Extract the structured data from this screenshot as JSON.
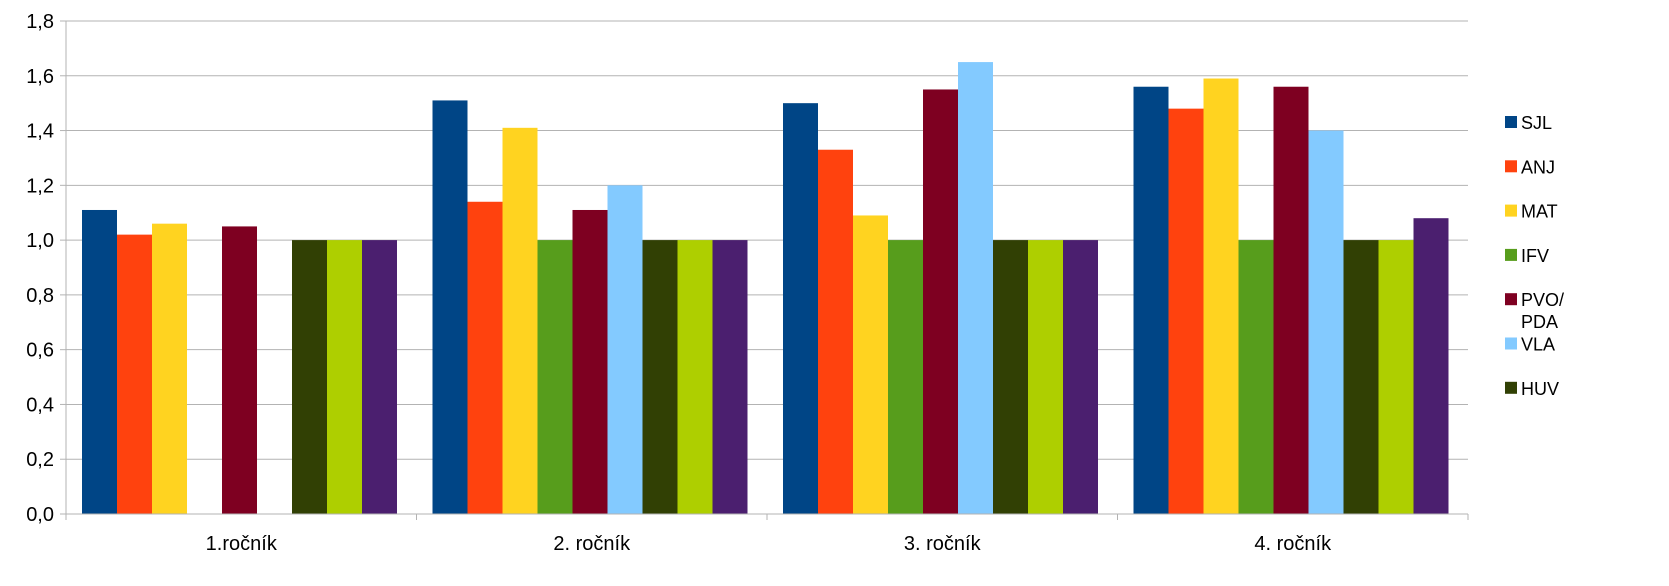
{
  "chart_data": {
    "type": "bar",
    "title": "",
    "xlabel": "",
    "ylabel": "",
    "ylim": [
      0,
      1.8
    ],
    "ytick_step": 0.2,
    "grid": true,
    "legend_position": "right",
    "categories": [
      "1.ročník",
      "2. ročník",
      "3. ročník",
      "4. ročník"
    ],
    "series": [
      {
        "name": "SJL",
        "color": "#004586",
        "values": [
          1.11,
          1.51,
          1.5,
          1.56
        ]
      },
      {
        "name": "ANJ",
        "color": "#ff420e",
        "values": [
          1.02,
          1.14,
          1.33,
          1.48
        ]
      },
      {
        "name": "MAT",
        "color": "#ffd320",
        "values": [
          1.06,
          1.41,
          1.09,
          1.59
        ]
      },
      {
        "name": "IFV",
        "color": "#579d1c",
        "values": [
          null,
          1.0,
          1.0,
          1.0
        ]
      },
      {
        "name": "PVO/PDA",
        "color": "#7e0021",
        "values": [
          1.05,
          1.11,
          1.55,
          1.56
        ]
      },
      {
        "name": "VLA",
        "color": "#83caff",
        "values": [
          null,
          1.2,
          1.65,
          1.4
        ]
      },
      {
        "name": "HUV",
        "color": "#314004",
        "values": [
          1.0,
          1.0,
          1.0,
          1.0
        ]
      },
      {
        "name": "",
        "color": "#aecf00",
        "values": [
          1.0,
          1.0,
          1.0,
          1.0
        ]
      },
      {
        "name": "",
        "color": "#4b1f6f",
        "values": [
          1.0,
          1.0,
          1.0,
          1.08
        ]
      }
    ]
  }
}
